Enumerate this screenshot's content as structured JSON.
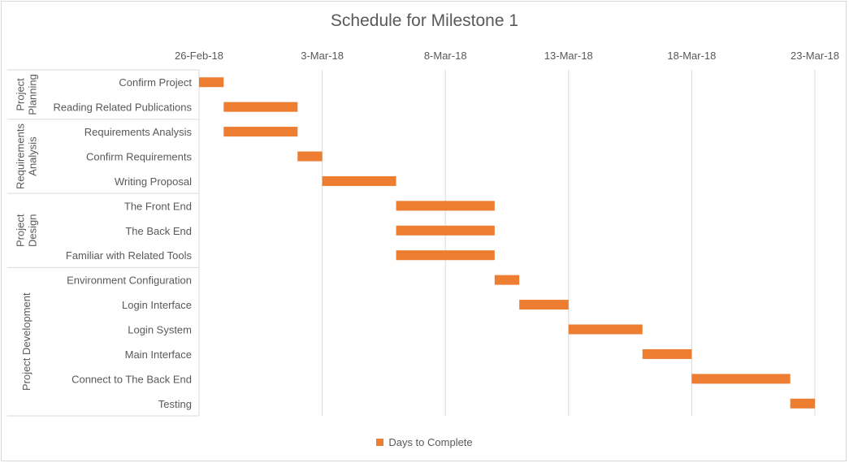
{
  "chart_data": {
    "type": "bar",
    "orientation": "horizontal-gantt",
    "title": "Schedule for Milestone 1",
    "x_axis": {
      "type": "date",
      "position": "top",
      "ticks": [
        "26-Feb-18",
        "3-Mar-18",
        "8-Mar-18",
        "13-Mar-18",
        "18-Mar-18",
        "23-Mar-18"
      ],
      "range": [
        "2018-02-26",
        "2018-03-23"
      ],
      "gridlines": "vertical-major"
    },
    "groups": [
      {
        "name": "Project Planning",
        "tasks": [
          0,
          1
        ]
      },
      {
        "name": "Requirements Analysis",
        "tasks": [
          2,
          3,
          4
        ]
      },
      {
        "name": "Project Design",
        "tasks": [
          5,
          6,
          7
        ]
      },
      {
        "name": "Project Development",
        "tasks": [
          8,
          9,
          10,
          11,
          12,
          13
        ]
      }
    ],
    "tasks": [
      {
        "name": "Confirm Project",
        "start": "2018-02-26",
        "days_to_complete": 1
      },
      {
        "name": "Reading Related Publications",
        "start": "2018-02-27",
        "days_to_complete": 3
      },
      {
        "name": "Requirements Analysis",
        "start": "2018-02-27",
        "days_to_complete": 3
      },
      {
        "name": "Confirm Requirements",
        "start": "2018-03-02",
        "days_to_complete": 1
      },
      {
        "name": "Writing Proposal",
        "start": "2018-03-03",
        "days_to_complete": 3
      },
      {
        "name": "The Front End",
        "start": "2018-03-06",
        "days_to_complete": 4
      },
      {
        "name": "The Back End",
        "start": "2018-03-06",
        "days_to_complete": 4
      },
      {
        "name": "Familiar with Related Tools",
        "start": "2018-03-06",
        "days_to_complete": 4
      },
      {
        "name": "Environment Configuration",
        "start": "2018-03-10",
        "days_to_complete": 1
      },
      {
        "name": "Login Interface",
        "start": "2018-03-11",
        "days_to_complete": 2
      },
      {
        "name": "Login System",
        "start": "2018-03-13",
        "days_to_complete": 3
      },
      {
        "name": "Main Interface",
        "start": "2018-03-16",
        "days_to_complete": 2
      },
      {
        "name": "Connect to The Back End",
        "start": "2018-03-18",
        "days_to_complete": 4
      },
      {
        "name": "Testing",
        "start": "2018-03-22",
        "days_to_complete": 1
      }
    ],
    "series": [
      {
        "name": "Days to Complete",
        "color": "#ed7d31"
      }
    ],
    "legend": "bottom-center"
  }
}
